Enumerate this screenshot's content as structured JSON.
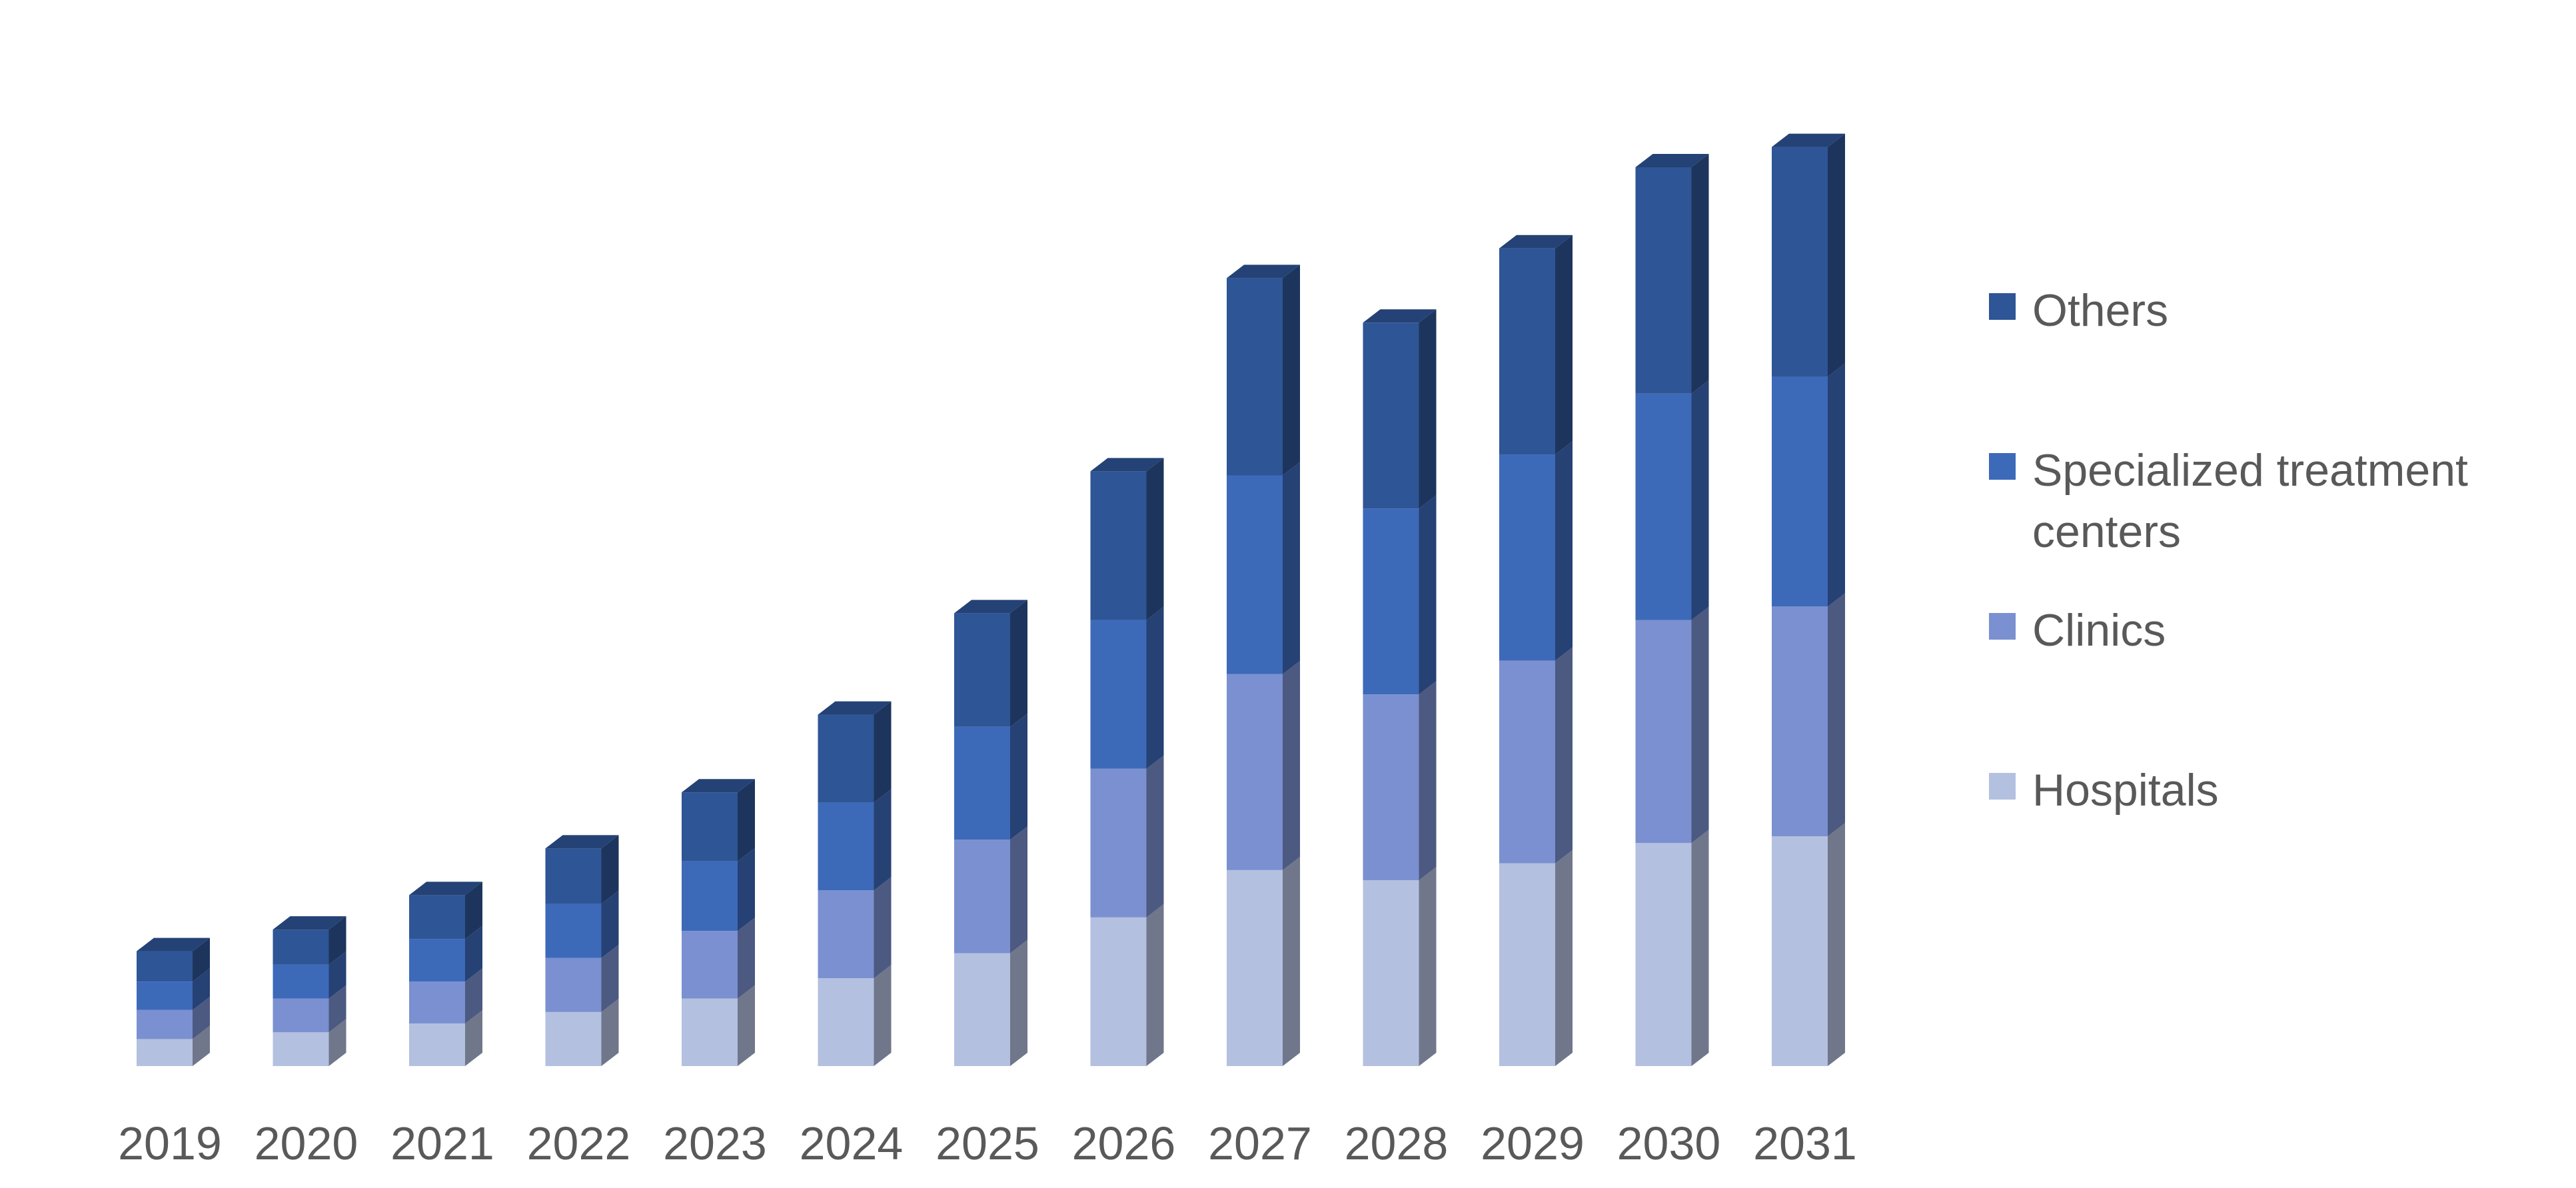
{
  "chart_data": {
    "type": "bar",
    "stacked": true,
    "style": "3d",
    "categories": [
      "2019",
      "2020",
      "2021",
      "2022",
      "2023",
      "2024",
      "2025",
      "2026",
      "2027",
      "2028",
      "2029",
      "2030",
      "2031"
    ],
    "series": [
      {
        "name": "Hospitals",
        "color": "#b4c0e0",
        "values": [
          4,
          5,
          6.3,
          8,
          10,
          13,
          16.7,
          22,
          29,
          27.5,
          30,
          33,
          34
        ]
      },
      {
        "name": "Clinics",
        "color": "#7a90d0",
        "values": [
          4.3,
          5,
          6.2,
          8,
          10,
          13,
          16.8,
          22,
          29,
          27.5,
          30,
          33,
          34
        ]
      },
      {
        "name": "Specialized treatment centers",
        "color": "#3d69b9",
        "values": [
          4.2,
          5,
          6.3,
          8,
          10.3,
          13,
          16.7,
          22,
          29.4,
          27.5,
          30.5,
          33.5,
          34
        ]
      },
      {
        "name": "Others",
        "color": "#2e5596",
        "values": [
          4.5,
          5.2,
          6.5,
          8.2,
          10.2,
          13,
          16.8,
          22,
          29.2,
          27.5,
          30.5,
          33.5,
          34
        ]
      }
    ],
    "ylim": [
      0,
      140
    ],
    "grid": false,
    "legend": "right"
  }
}
